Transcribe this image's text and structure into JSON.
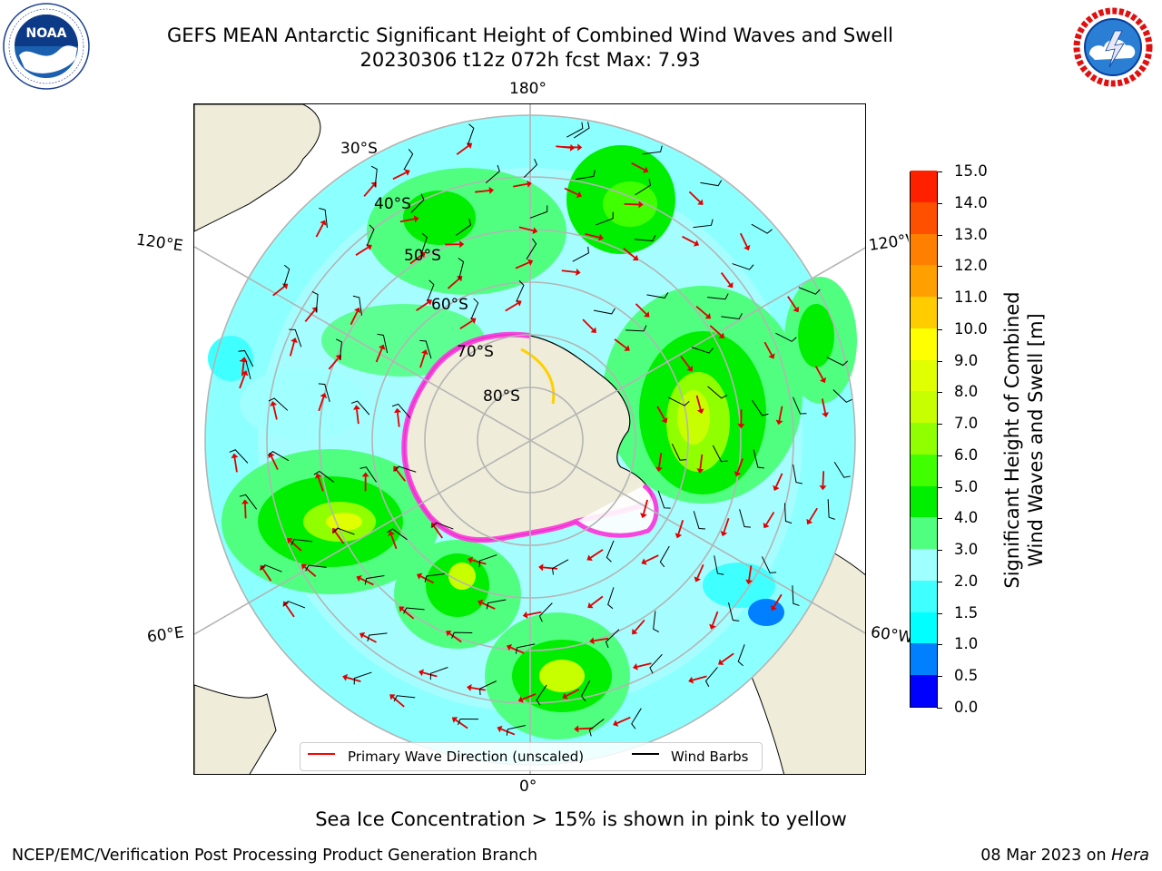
{
  "header": {
    "title_line1": "GEFS MEAN Antarctic Significant Height of Combined Wind Waves and Swell",
    "title_line2": "20230306 t12z 072h fcst   Max: 7.93"
  },
  "logos": {
    "noaa_text": "NOAA",
    "noaa_ring": "NATIONAL OCEANIC AND ATMOSPHERIC ADMINISTRATION · U.S. DEPARTMENT OF COMMERCE",
    "nws_ring": "NATIONAL WEATHER SERVICE"
  },
  "map": {
    "longitude_labels": {
      "top": "180°",
      "bottom": "0°",
      "left_upper": "120°E",
      "left_lower": "60°E",
      "right_upper": "120°W",
      "right_lower": "60°W"
    },
    "latitude_labels": [
      "30°S",
      "40°S",
      "50°S",
      "60°S",
      "70°S",
      "80°S"
    ],
    "colors": {
      "ocean_low": "#8cffff",
      "land": "#efedd9",
      "graticule": "#b4b4b4",
      "wave_arrow": "#ff0000",
      "wind_barb": "#000000",
      "sea_ice": "#ff33dd"
    }
  },
  "colorbar": {
    "label_line1": "Significant Height of Combined",
    "label_line2": "Wind Waves and Swell [m]",
    "ticks": [
      "0.0",
      "0.5",
      "1.0",
      "1.5",
      "2.0",
      "3.0",
      "4.0",
      "5.0",
      "6.0",
      "7.0",
      "8.0",
      "9.0",
      "10.0",
      "11.0",
      "12.0",
      "13.0",
      "14.0",
      "15.0"
    ],
    "colors": [
      "#0000ff",
      "#0080ff",
      "#00ffff",
      "#40ffff",
      "#a0ffff",
      "#50ff80",
      "#00ee00",
      "#40ff00",
      "#90ff00",
      "#c8ff00",
      "#e0ff00",
      "#ffff00",
      "#ffcc00",
      "#ffa000",
      "#ff8000",
      "#ff5000",
      "#ff2000"
    ]
  },
  "legend": {
    "wave_label": "Primary Wave Direction (unscaled)",
    "wind_label": "Wind Barbs"
  },
  "caption": "Sea Ice Concentration > 15% is shown in pink to yellow",
  "footer": {
    "left": "NCEP/EMC/Verification Post Processing Product Generation Branch",
    "date": "08 Mar 2023 on ",
    "machine": "Hera"
  }
}
